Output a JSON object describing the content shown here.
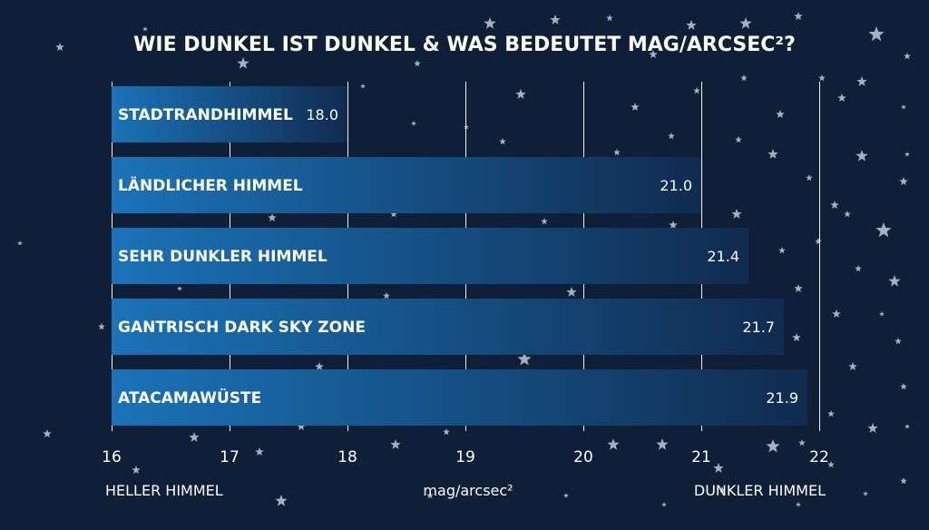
{
  "chart_data": {
    "type": "bar",
    "orientation": "horizontal",
    "title": "WIE DUNKEL IST DUNKEL & WAS BEDEUTET MAG/ARCSEC²?",
    "categories": [
      "STADTRANDHIMMEL",
      "LÄNDLICHER HIMMEL",
      "SEHR DUNKLER HIMMEL",
      "GANTRISCH DARK SKY ZONE",
      "ATACAMAWÜSTE"
    ],
    "values": [
      18.0,
      21.0,
      21.4,
      21.7,
      21.9
    ],
    "value_labels": [
      "18.0",
      "21.0",
      "21.4",
      "21.7",
      "21.9"
    ],
    "xlim": [
      16,
      22
    ],
    "xticks": [
      "16",
      "17",
      "18",
      "19",
      "20",
      "21",
      "22"
    ],
    "xlabel": "mag/arcsec²",
    "x_left_label": "HELLER HIMMEL",
    "x_right_label": "DUNKLER HIMMEL",
    "grid": true,
    "colors": {
      "background": "#0f1f38",
      "bar_start": "#1a73b8",
      "bar_end": "#102b4f",
      "gridline": "#ffffff",
      "text": "#ffffff",
      "stars": "#b9bfcc"
    },
    "decoration": "star-field background"
  }
}
